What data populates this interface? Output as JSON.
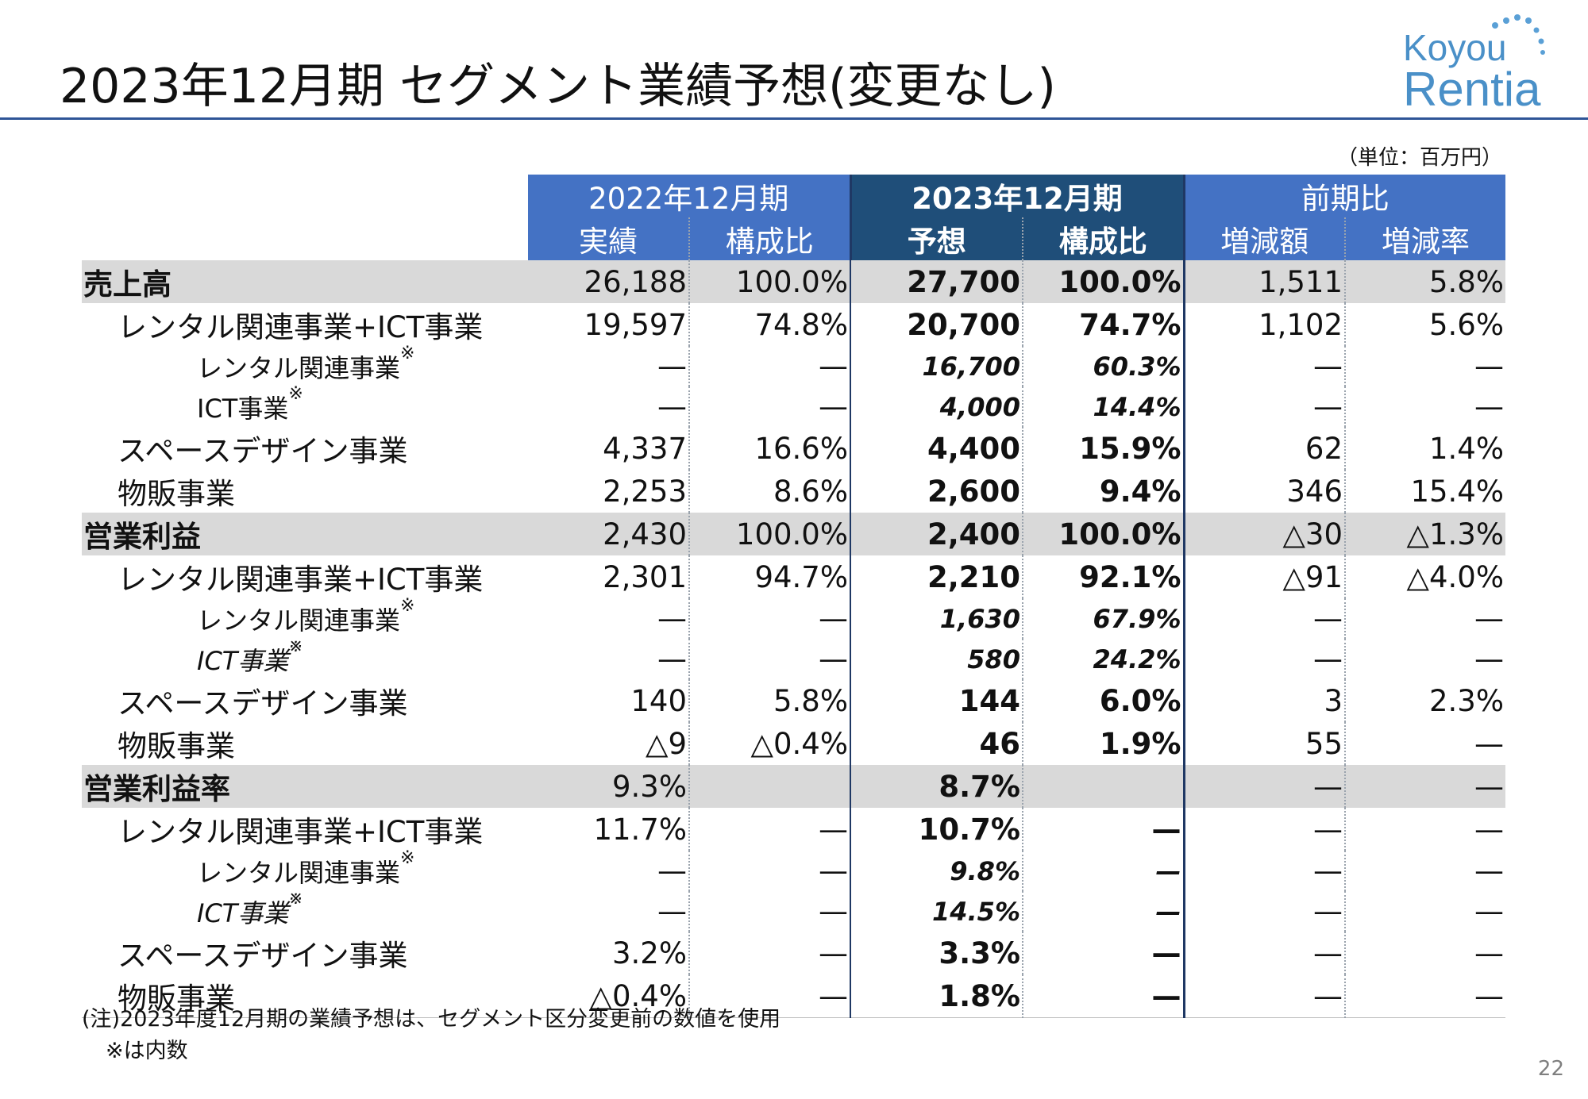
{
  "slide": {
    "title": "2023年12月期 セグメント業績予想(変更なし)",
    "unit": "（単位：百万円）",
    "logo_line1": "Koyou",
    "logo_line2": "Rentia",
    "page_number": "22",
    "colors": {
      "header_blue": "#4472c4",
      "header_dark": "#1f4e79",
      "shade": "#d9d9d9",
      "rule": "#2f5597"
    }
  },
  "table": {
    "group_headers": [
      "2022年12月期",
      "2023年12月期",
      "前期比"
    ],
    "sub_headers": [
      "実績",
      "構成比",
      "予想",
      "構成比",
      "増減額",
      "増減率"
    ],
    "rows": [
      {
        "label": "売上高",
        "level": 0,
        "values": [
          "26,188",
          "100.0%",
          "27,700",
          "100.0%",
          "1,511",
          "5.8%"
        ]
      },
      {
        "label": "レンタル関連事業+ICT事業",
        "level": 1,
        "values": [
          "19,597",
          "74.8%",
          "20,700",
          "74.7%",
          "1,102",
          "5.6%"
        ]
      },
      {
        "label": "レンタル関連事業",
        "level": 2,
        "mark": "※",
        "values": [
          "—",
          "—",
          "16,700",
          "60.3%",
          "—",
          "—"
        ]
      },
      {
        "label": "ICT事業",
        "level": 2,
        "mark": "※",
        "values": [
          "—",
          "—",
          "4,000",
          "14.4%",
          "—",
          "—"
        ]
      },
      {
        "label": "スペースデザイン事業",
        "level": 1,
        "values": [
          "4,337",
          "16.6%",
          "4,400",
          "15.9%",
          "62",
          "1.4%"
        ]
      },
      {
        "label": "物販事業",
        "level": 1,
        "values": [
          "2,253",
          "8.6%",
          "2,600",
          "9.4%",
          "346",
          "15.4%"
        ]
      },
      {
        "label": "営業利益",
        "level": 0,
        "values": [
          "2,430",
          "100.0%",
          "2,400",
          "100.0%",
          "△30",
          "△1.3%"
        ]
      },
      {
        "label": "レンタル関連事業+ICT事業",
        "level": 1,
        "values": [
          "2,301",
          "94.7%",
          "2,210",
          "92.1%",
          "△91",
          "△4.0%"
        ]
      },
      {
        "label": "レンタル関連事業",
        "level": 2,
        "mark": "※",
        "values": [
          "—",
          "—",
          "1,630",
          "67.9%",
          "—",
          "—"
        ]
      },
      {
        "label": "ICT事業",
        "level": 2,
        "mark": "※",
        "values": [
          "—",
          "—",
          "580",
          "24.2%",
          "—",
          "—"
        ]
      },
      {
        "label": "スペースデザイン事業",
        "level": 1,
        "values": [
          "140",
          "5.8%",
          "144",
          "6.0%",
          "3",
          "2.3%"
        ]
      },
      {
        "label": "物販事業",
        "level": 1,
        "values": [
          "△9",
          "△0.4%",
          "46",
          "1.9%",
          "55",
          "—"
        ]
      },
      {
        "label": "営業利益率",
        "level": 0,
        "values": [
          "9.3%",
          "",
          "8.7%",
          "",
          "—",
          "—"
        ]
      },
      {
        "label": "レンタル関連事業+ICT事業",
        "level": 1,
        "values": [
          "11.7%",
          "—",
          "10.7%",
          "—",
          "—",
          "—"
        ]
      },
      {
        "label": "レンタル関連事業",
        "level": 2,
        "mark": "※",
        "values": [
          "—",
          "—",
          "9.8%",
          "—",
          "—",
          "—"
        ]
      },
      {
        "label": "ICT事業",
        "level": 2,
        "mark": "※",
        "values": [
          "—",
          "—",
          "14.5%",
          "—",
          "—",
          "—"
        ]
      },
      {
        "label": "スペースデザイン事業",
        "level": 1,
        "values": [
          "3.2%",
          "—",
          "3.3%",
          "—",
          "—",
          "—"
        ]
      },
      {
        "label": "物販事業",
        "level": 1,
        "values": [
          "△0.4%",
          "—",
          "1.8%",
          "—",
          "—",
          "—"
        ]
      }
    ]
  },
  "notes": {
    "line1": "(注)2023年度12月期の業績予想は、セグメント区分変更前の数値を使用",
    "line2": "※は内数"
  }
}
